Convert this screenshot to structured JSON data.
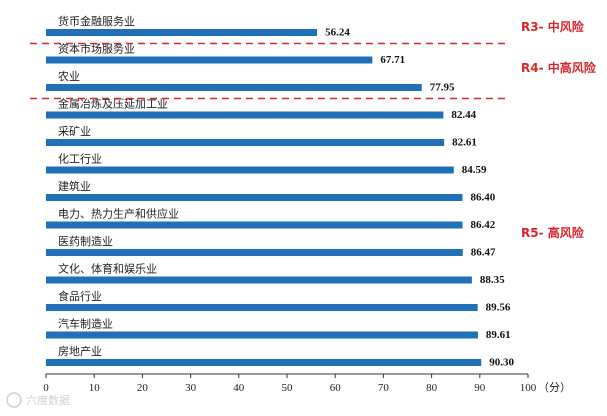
{
  "chart_data": {
    "type": "bar",
    "orientation": "horizontal",
    "title": "",
    "xlabel": "",
    "ylabel": "",
    "unit_label": "（分）",
    "xlim": [
      0,
      100
    ],
    "x_ticks": [
      0,
      10,
      20,
      30,
      40,
      50,
      60,
      70,
      80,
      90,
      100
    ],
    "grid": false,
    "legend": "none",
    "bar_color": "#1f6fb9",
    "categories": [
      "货币金融服务业",
      "资本市场服务业",
      "农业",
      "金属冶炼及压延加工业",
      "采矿业",
      "化工行业",
      "建筑业",
      "电力、热力生产和供应业",
      "医药制造业",
      "文化、体育和娱乐业",
      "食品行业",
      "汽车制造业",
      "房地产业"
    ],
    "values": [
      56.24,
      67.71,
      77.95,
      82.44,
      82.61,
      84.59,
      86.4,
      86.42,
      86.47,
      88.35,
      89.56,
      89.61,
      90.3
    ],
    "value_labels": [
      "56.24",
      "67.71",
      "77.95",
      "82.44",
      "82.61",
      "84.59",
      "86.40",
      "86.42",
      "86.47",
      "88.35",
      "89.56",
      "89.61",
      "90.30"
    ],
    "risk_groups": [
      {
        "label": "R3- 中风险",
        "first": 0,
        "last": 0
      },
      {
        "label": "R4- 中高风险",
        "first": 1,
        "last": 2
      },
      {
        "label": "R5- 高风险",
        "first": 3,
        "last": 12
      }
    ],
    "divider_color": "#d9262b",
    "watermark": "六度数据"
  }
}
